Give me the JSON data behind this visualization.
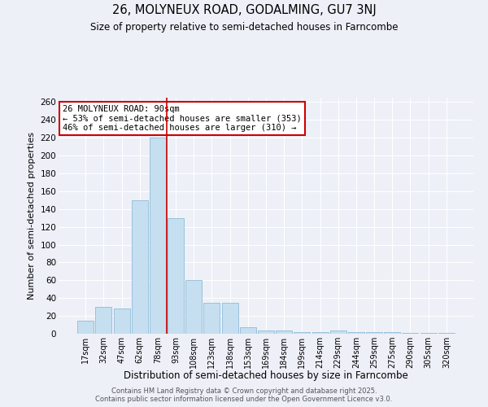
{
  "title": "26, MOLYNEUX ROAD, GODALMING, GU7 3NJ",
  "subtitle": "Size of property relative to semi-detached houses in Farncombe",
  "xlabel": "Distribution of semi-detached houses by size in Farncombe",
  "ylabel": "Number of semi-detached properties",
  "property_label": "26 MOLYNEUX ROAD: 90sqm",
  "pct_smaller": 53,
  "pct_larger": 46,
  "count_smaller": 353,
  "count_larger": 310,
  "categories": [
    "17sqm",
    "32sqm",
    "47sqm",
    "62sqm",
    "78sqm",
    "93sqm",
    "108sqm",
    "123sqm",
    "138sqm",
    "153sqm",
    "169sqm",
    "184sqm",
    "199sqm",
    "214sqm",
    "229sqm",
    "244sqm",
    "259sqm",
    "275sqm",
    "290sqm",
    "305sqm",
    "320sqm"
  ],
  "values": [
    15,
    30,
    28,
    150,
    220,
    130,
    60,
    35,
    35,
    7,
    4,
    4,
    2,
    2,
    4,
    2,
    2,
    2,
    1,
    1,
    1
  ],
  "bar_color": "#c5dff0",
  "bar_edge_color": "#7fb3d3",
  "vline_color": "#cc0000",
  "vline_index": 4,
  "annotation_box_color": "#cc0000",
  "ylim": [
    0,
    265
  ],
  "yticks": [
    0,
    20,
    40,
    60,
    80,
    100,
    120,
    140,
    160,
    180,
    200,
    220,
    240,
    260
  ],
  "bg_color": "#eef0f8",
  "grid_color": "#ffffff",
  "footer1": "Contains HM Land Registry data © Crown copyright and database right 2025.",
  "footer2": "Contains public sector information licensed under the Open Government Licence v3.0."
}
